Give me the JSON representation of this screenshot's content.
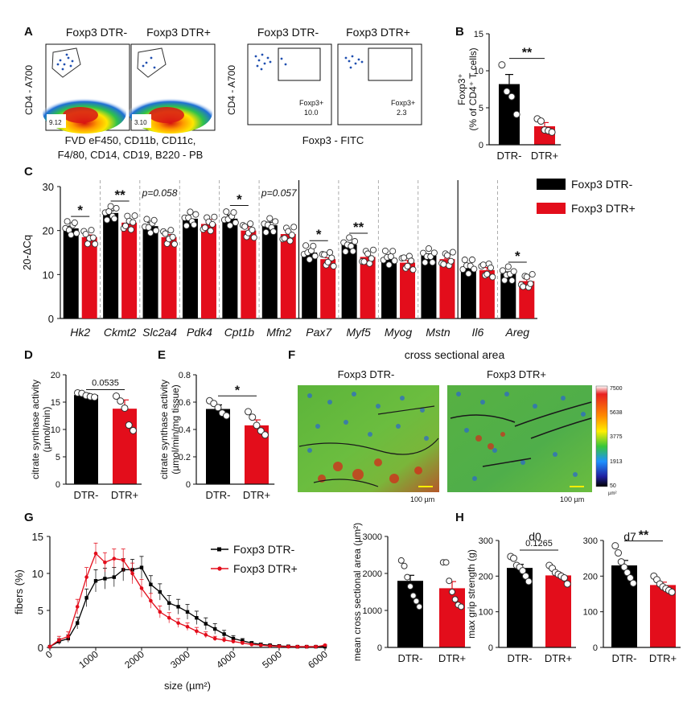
{
  "panel_labels": {
    "A": "A",
    "B": "B",
    "C": "C",
    "D": "D",
    "E": "E",
    "F": "F",
    "G": "G",
    "H": "H"
  },
  "colors": {
    "dtr_minus": "#000000",
    "dtr_plus": "#e30d1b",
    "axis": "#111111"
  },
  "panelA": {
    "plot1_title_minus": "Foxp3 DTR-",
    "plot1_title_plus": "Foxp3 DTR+",
    "plot1_ylabel": "CD4 - A700",
    "plot1_xlabel_line1": "FVD eF450, CD11b, CD11c,",
    "plot1_xlabel_line2": "F4/80, CD14, CD19, B220 - PB",
    "gate_pct_minus": "9.12",
    "gate_pct_plus": "3.10",
    "plot2_title_minus": "Foxp3 DTR-",
    "plot2_title_plus": "Foxp3 DTR+",
    "plot2_ylabel": "CD4 - A700",
    "plot2_xlabel": "Foxp3 - FITC",
    "gate2_label": "Foxp3+",
    "gate2_value_minus": "10.0",
    "gate2_value_plus": "2.3"
  },
  "legend_c": {
    "minus": "Foxp3 DTR-",
    "plus": "Foxp3 DTR+"
  },
  "cross_section": {
    "title": "cross sectional area",
    "label_minus": "Foxp3 DTR-",
    "label_plus": "Foxp3 DTR+",
    "scalebar": "100 µm",
    "colorbar_ticks": [
      "7500",
      "5638",
      "3775",
      "1913",
      "50"
    ],
    "colorbar_unit": "µm²"
  },
  "h_titles": {
    "d0": "d0",
    "d7": "d7"
  },
  "chart_data": [
    {
      "id": "B",
      "type": "bar",
      "ylabel": "Foxp3⁺ (% of CD4⁺ T cells)",
      "ylim": [
        0,
        15
      ],
      "yticks": [
        0,
        5,
        10,
        15
      ],
      "categories": [
        "DTR-",
        "DTR+"
      ],
      "values": [
        8.2,
        2.5
      ],
      "errors": [
        1.3,
        0.5
      ],
      "points": [
        [
          10.8,
          7.2,
          6.5,
          4.1
        ],
        [
          3.5,
          3.2,
          2.0,
          1.9,
          1.7
        ]
      ],
      "significance": "**"
    },
    {
      "id": "C",
      "type": "bar",
      "ylabel": "20-ΔCq",
      "ylim": [
        0,
        30
      ],
      "yticks": [
        0,
        10,
        20,
        30
      ],
      "categories": [
        "Hk2",
        "Ckmt2",
        "Slc2a4",
        "Pdk4",
        "Cpt1b",
        "Mfn2",
        "Pax7",
        "Myf5",
        "Myog",
        "Mstn",
        "Il6",
        "Areg"
      ],
      "series": [
        {
          "name": "Foxp3 DTR-",
          "values": [
            20.5,
            24.0,
            21.0,
            22.7,
            22.7,
            21.2,
            15.0,
            16.8,
            13.8,
            14.3,
            11.8,
            10.2
          ],
          "errors": [
            0.5,
            0.5,
            0.8,
            1.3,
            0.8,
            0.7,
            0.5,
            0.4,
            0.3,
            0.4,
            0.5,
            0.4
          ]
        },
        {
          "name": "Foxp3 DTR+",
          "values": [
            18.5,
            21.8,
            18.5,
            21.5,
            20.0,
            19.2,
            13.5,
            14.0,
            12.7,
            13.5,
            11.0,
            8.5
          ],
          "errors": [
            0.5,
            0.4,
            0.6,
            1.0,
            0.9,
            0.7,
            0.3,
            0.6,
            0.5,
            0.2,
            0.6,
            0.5
          ]
        }
      ],
      "significance": [
        "*",
        "**",
        "p=0.058",
        "",
        "*",
        "p=0.057",
        "*",
        "**",
        "",
        "",
        "",
        "*"
      ]
    },
    {
      "id": "D",
      "type": "bar",
      "ylabel": "citrate synthase activity (µmol/min)",
      "ylim": [
        0,
        20
      ],
      "yticks": [
        0,
        5,
        10,
        15,
        20
      ],
      "categories": [
        "DTR-",
        "DTR+"
      ],
      "values": [
        16.3,
        13.8
      ],
      "errors": [
        0.3,
        1.6
      ],
      "points": [
        [
          16.7,
          16.6,
          16.2,
          16.0,
          15.9
        ],
        [
          16.1,
          15.2,
          13.9,
          10.8,
          9.8
        ]
      ],
      "significance": "0.0535"
    },
    {
      "id": "E",
      "type": "bar",
      "ylabel": "citrate synthase activity (µmol/min/mg tissue)",
      "ylim": [
        0,
        0.8
      ],
      "yticks": [
        0,
        0.2,
        0.4,
        0.6,
        0.8
      ],
      "categories": [
        "DTR-",
        "DTR+"
      ],
      "values": [
        0.55,
        0.43
      ],
      "errors": [
        0.03,
        0.04
      ],
      "points": [
        [
          0.61,
          0.59,
          0.56,
          0.52,
          0.5
        ],
        [
          0.53,
          0.49,
          0.43,
          0.39,
          0.36
        ]
      ],
      "significance": "*"
    },
    {
      "id": "G-line",
      "type": "line",
      "xlabel": "size (µm²)",
      "ylabel": "fibers (%)",
      "xlim": [
        0,
        6000
      ],
      "ylim": [
        0,
        15
      ],
      "xticks": [
        0,
        1000,
        2000,
        3000,
        4000,
        5000,
        6000
      ],
      "yticks": [
        0,
        5,
        10,
        15
      ],
      "x": [
        0,
        200,
        400,
        600,
        800,
        1000,
        1200,
        1400,
        1600,
        1800,
        2000,
        2200,
        2400,
        2600,
        2800,
        3000,
        3200,
        3400,
        3600,
        3800,
        4000,
        4200,
        4400,
        4600,
        4800,
        5000,
        5200,
        5400,
        5600,
        5800,
        6000
      ],
      "series": [
        {
          "name": "Foxp3 DTR-",
          "values": [
            0.1,
            0.8,
            1.2,
            3.3,
            6.7,
            9.0,
            9.3,
            9.5,
            10.5,
            10.5,
            10.8,
            8.5,
            7.5,
            6.0,
            5.5,
            4.8,
            4.0,
            3.2,
            2.5,
            1.8,
            1.2,
            0.9,
            0.6,
            0.4,
            0.3,
            0.2,
            0.15,
            0.1,
            0.1,
            0.1,
            0.1
          ],
          "errors": [
            0.1,
            0.4,
            0.5,
            0.8,
            1.2,
            1.5,
            1.4,
            1.3,
            1.5,
            1.4,
            1.5,
            1.2,
            1.1,
            1.0,
            1.0,
            1.0,
            0.9,
            0.8,
            0.7,
            0.5,
            0.4,
            0.3,
            0.2,
            0.2,
            0.1,
            0.1,
            0.1,
            0.1,
            0.1,
            0.1,
            0.1
          ]
        },
        {
          "name": "Foxp3 DTR+",
          "values": [
            0.1,
            1.0,
            1.5,
            5.5,
            9.5,
            12.7,
            11.5,
            12.0,
            11.8,
            10.0,
            8.0,
            6.3,
            4.8,
            4.0,
            3.3,
            2.8,
            2.2,
            1.7,
            1.2,
            1.0,
            0.8,
            0.6,
            0.4,
            0.3,
            0.2,
            0.15,
            0.1,
            0.1,
            0.1,
            0.1,
            0.3
          ],
          "errors": [
            0.1,
            0.5,
            0.6,
            1.0,
            1.3,
            1.4,
            1.3,
            1.3,
            1.5,
            1.4,
            1.2,
            1.0,
            0.8,
            0.7,
            0.6,
            0.5,
            0.5,
            0.4,
            0.3,
            0.3,
            0.2,
            0.2,
            0.1,
            0.1,
            0.1,
            0.1,
            0.1,
            0.1,
            0.1,
            0.1,
            0.1
          ]
        }
      ]
    },
    {
      "id": "G-bar",
      "type": "bar",
      "ylabel": "mean cross sectional area (µm²)",
      "ylim": [
        0,
        3000
      ],
      "yticks": [
        0,
        1000,
        2000,
        3000
      ],
      "categories": [
        "DTR-",
        "DTR+"
      ],
      "values": [
        1800,
        1600
      ],
      "errors": [
        150,
        180
      ],
      "points": [
        [
          2350,
          2200,
          1900,
          1650,
          1400,
          1250,
          1100
        ],
        [
          2300,
          2300,
          1800,
          1500,
          1300,
          1150,
          1100
        ]
      ],
      "significance": ""
    },
    {
      "id": "H-d0",
      "type": "bar",
      "title": "d0",
      "ylabel": "max grip strength (g)",
      "ylim": [
        0,
        300
      ],
      "yticks": [
        0,
        100,
        200,
        300
      ],
      "categories": [
        "DTR-",
        "DTR+"
      ],
      "values": [
        223,
        202
      ],
      "errors": [
        10,
        7
      ],
      "points": [
        [
          255,
          250,
          230,
          225,
          215,
          200,
          185
        ],
        [
          230,
          222,
          210,
          205,
          200,
          195,
          178
        ]
      ],
      "significance": "0.1265"
    },
    {
      "id": "H-d7",
      "type": "bar",
      "title": "d7",
      "ylim": [
        0,
        300
      ],
      "yticks": [
        0,
        100,
        200,
        300
      ],
      "categories": [
        "DTR-",
        "DTR+"
      ],
      "values": [
        230,
        175
      ],
      "errors": [
        14,
        8
      ],
      "points": [
        [
          285,
          265,
          240,
          225,
          210,
          195,
          180
        ],
        [
          200,
          190,
          178,
          170,
          165,
          160,
          155
        ]
      ],
      "significance": "**"
    }
  ]
}
